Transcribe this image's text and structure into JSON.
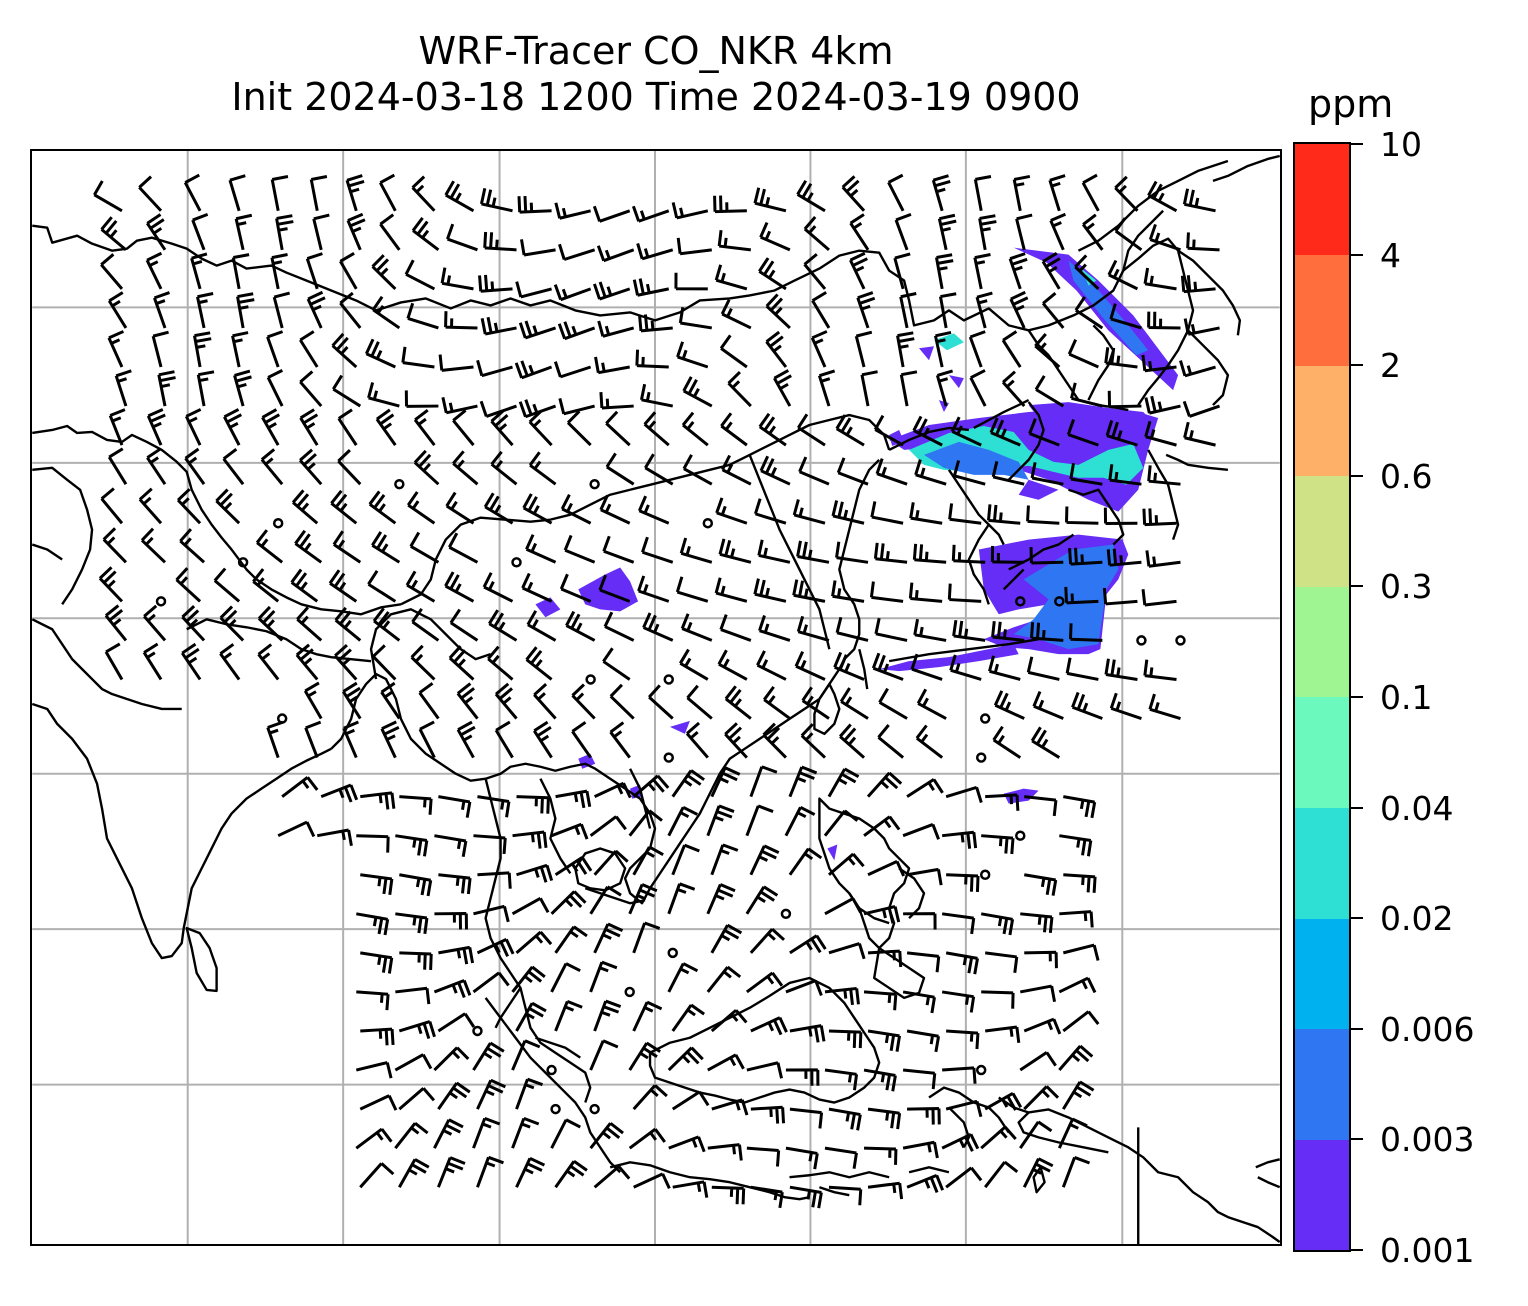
{
  "title": {
    "line1": "WRF-Tracer CO_NKR 4km",
    "line2": "Init 2024-03-18 1200 Time 2024-03-19 0900"
  },
  "colorbar": {
    "units": "ppm",
    "tick_labels": [
      "0.001",
      "0.003",
      "0.006",
      "0.02",
      "0.04",
      "0.1",
      "0.3",
      "0.6",
      "2",
      "4",
      "10"
    ],
    "bin_colors": [
      "#652df5",
      "#2f76f3",
      "#00b1ef",
      "#2edfd4",
      "#6cf9bd",
      "#9ff592",
      "#d0e286",
      "#ffb068",
      "#ff6e3c",
      "#ff2a1a"
    ]
  },
  "map": {
    "gridlines": true,
    "coastline_color": "#000000",
    "grid_color": "#b0b0b0",
    "wind_barbs": true,
    "tracer_colors": {
      "low": "#652df5",
      "mid": "#2f76f3",
      "high": "#2edfd4"
    }
  }
}
